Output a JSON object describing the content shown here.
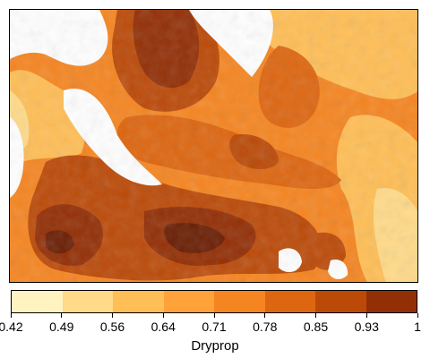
{
  "map": {
    "palette": [
      "#FFF3C2",
      "#FFDA88",
      "#FFBE56",
      "#FFA23A",
      "#F58521",
      "#DD6611",
      "#BB4A09",
      "#922F06",
      "#6A1E04"
    ],
    "background": "#ffffff"
  },
  "legend": {
    "title": "Dryprop",
    "breaks": [
      "0.42",
      "0.49",
      "0.56",
      "0.64",
      "0.71",
      "0.78",
      "0.85",
      "0.93",
      "1"
    ],
    "colors": [
      "#FFF3C2",
      "#FFDA88",
      "#FFBE56",
      "#FFA23A",
      "#F58521",
      "#DD6611",
      "#BB4A09",
      "#922F06"
    ]
  }
}
